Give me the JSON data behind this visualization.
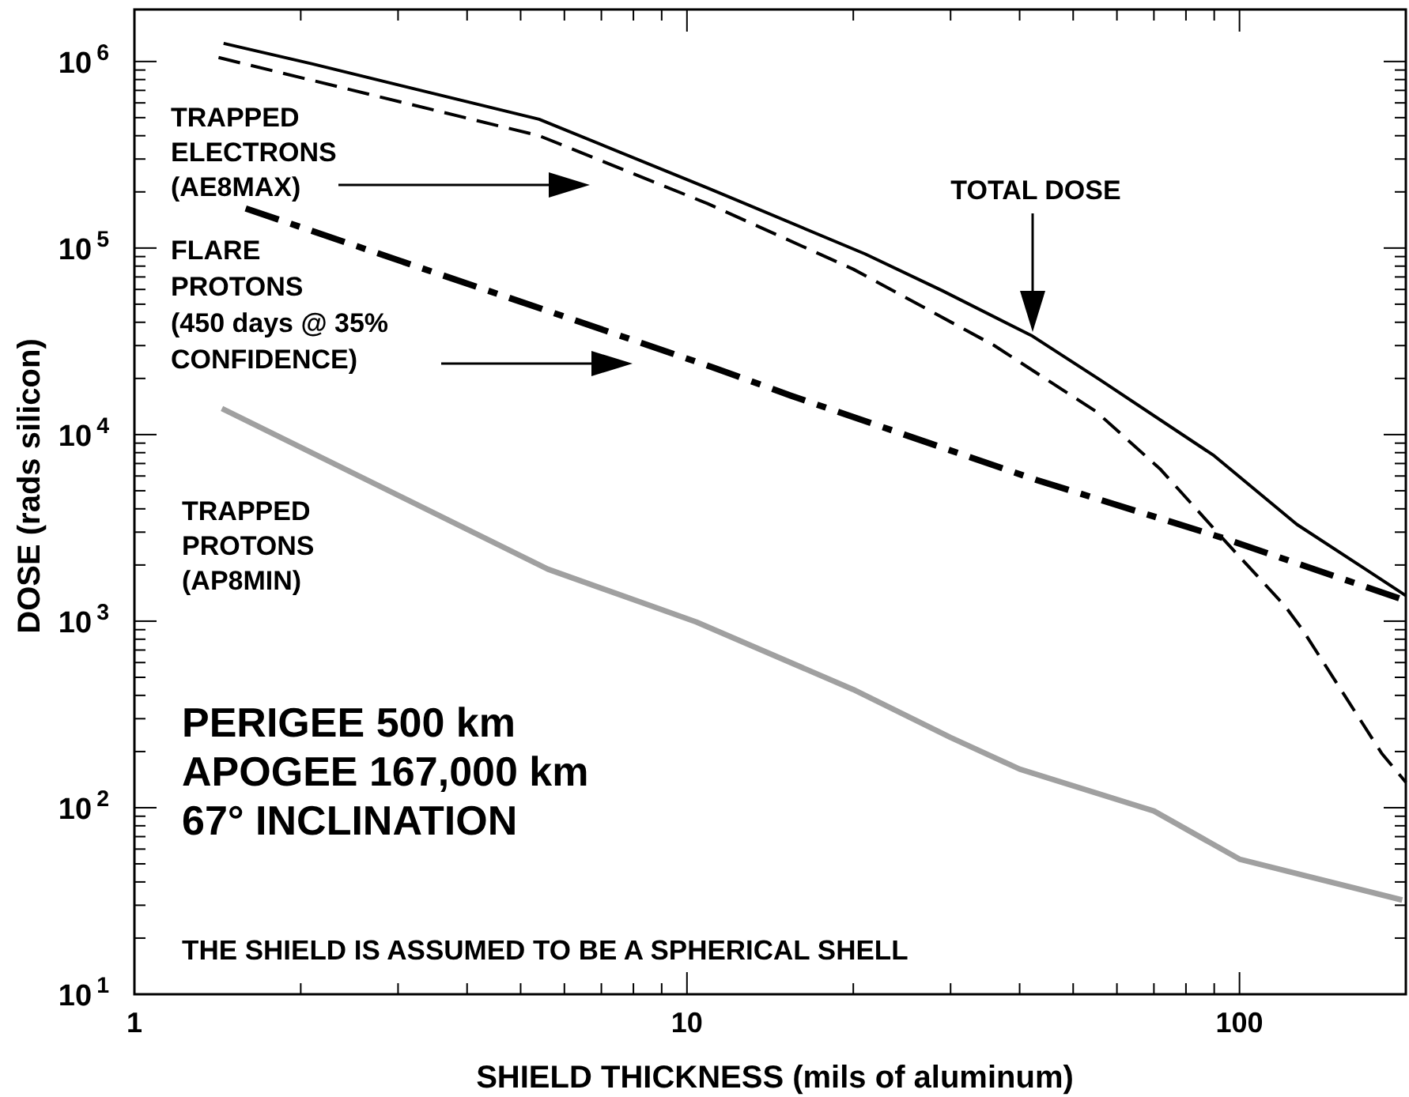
{
  "chart_data": {
    "type": "line",
    "xlabel": "SHIELD THICKNESS (mils of aluminum)",
    "ylabel": "DOSE (rads silicon)",
    "log": "xy",
    "xlim": [
      1,
      200
    ],
    "ylim": [
      10,
      1900000
    ],
    "xticks": [
      1,
      {
        "value": 2,
        "label": null
      },
      {
        "value": 3,
        "label": null
      },
      {
        "value": 4,
        "label": null
      },
      {
        "value": 5,
        "label": null
      },
      {
        "value": 6,
        "label": null
      },
      {
        "value": 7,
        "label": null
      },
      {
        "value": 8,
        "label": null
      },
      {
        "value": 9,
        "label": null
      },
      10,
      {
        "value": 20,
        "label": null
      },
      {
        "value": 30,
        "label": null
      },
      {
        "value": 40,
        "label": null
      },
      {
        "value": 50,
        "label": null
      },
      {
        "value": 60,
        "label": null
      },
      {
        "value": 70,
        "label": null
      },
      {
        "value": 80,
        "label": null
      },
      {
        "value": 90,
        "label": null
      },
      100
    ],
    "yticks": [
      {
        "value": 10,
        "label": "10$^{1}$"
      },
      {
        "value": 20,
        "label": null
      },
      {
        "value": 30,
        "label": null
      },
      {
        "value": 40,
        "label": null
      },
      {
        "value": 50,
        "label": null
      },
      {
        "value": 60,
        "label": null
      },
      {
        "value": 70,
        "label": null
      },
      {
        "value": 80,
        "label": null
      },
      {
        "value": 90,
        "label": null
      },
      {
        "value": 100,
        "label": "10$^{2}$"
      },
      {
        "value": 200,
        "label": null
      },
      {
        "value": 300,
        "label": null
      },
      {
        "value": 400,
        "label": null
      },
      {
        "value": 500,
        "label": null
      },
      {
        "value": 600,
        "label": null
      },
      {
        "value": 700,
        "label": null
      },
      {
        "value": 800,
        "label": null
      },
      {
        "value": 900,
        "label": null
      },
      {
        "value": 1000,
        "label": "10$^{3}$"
      },
      {
        "value": 2000,
        "label": null
      },
      {
        "value": 3000,
        "label": null
      },
      {
        "value": 4000,
        "label": null
      },
      {
        "value": 5000,
        "label": null
      },
      {
        "value": 6000,
        "label": null
      },
      {
        "value": 7000,
        "label": null
      },
      {
        "value": 8000,
        "label": null
      },
      {
        "value": 9000,
        "label": null
      },
      {
        "value": 10000,
        "label": "10$^{4}$"
      },
      {
        "value": 20000,
        "label": null
      },
      {
        "value": 30000,
        "label": null
      },
      {
        "value": 40000,
        "label": null
      },
      {
        "value": 50000,
        "label": null
      },
      {
        "value": 60000,
        "label": null
      },
      {
        "value": 70000,
        "label": null
      },
      {
        "value": 80000,
        "label": null
      },
      {
        "value": 90000,
        "label": null
      },
      {
        "value": 100000,
        "label": "10$^{5}$"
      },
      {
        "value": 200000,
        "label": null
      },
      {
        "value": 300000,
        "label": null
      },
      {
        "value": 400000,
        "label": null
      },
      {
        "value": 500000,
        "label": null
      },
      {
        "value": 600000,
        "label": null
      },
      {
        "value": 700000,
        "label": null
      },
      {
        "value": 800000,
        "label": null
      },
      {
        "value": 900000,
        "label": null
      },
      {
        "value": 1000000,
        "label": "10$^{6}$"
      }
    ],
    "grid": false,
    "series": [
      {
        "color": "#000000",
        "line_style": "solid",
        "x": [
          1.45,
          2.1,
          5.4,
          10.9,
          21,
          29,
          42,
          56,
          90,
          127,
          169,
          200
        ],
        "values": [
          1250000,
          970000,
          490000,
          210000,
          93000,
          59000,
          34000,
          19600,
          7700,
          3300,
          1900,
          1370
        ]
      },
      {
        "color": "#000000",
        "line_style": "dashed",
        "x": [
          1.42,
          5.4,
          10.9,
          20,
          36,
          55,
          72,
          93,
          121,
          130,
          181,
          200
        ],
        "values": [
          1050000,
          400000,
          173000,
          77000,
          30000,
          13300,
          6500,
          2800,
          1200,
          900,
          195,
          137
        ]
      },
      {
        "color": "#000000",
        "line_style": "dashdot",
        "x": [
          1.59,
          5.6,
          11.1,
          15.4,
          43,
          93,
          200
        ],
        "values": [
          163000,
          46000,
          23000,
          16200,
          5700,
          2800,
          1290
        ]
      },
      {
        "color": "#a0a0a0",
        "line_style": "solid",
        "x": [
          1.44,
          5.6,
          10.4,
          20,
          30,
          40,
          70,
          100,
          197
        ],
        "values": [
          13800,
          1900,
          990,
          430,
          238,
          161,
          96,
          53,
          32
        ]
      }
    ],
    "annotations": [
      "TRAPPED\nELECTRONS\n(AE8MAX)",
      "FLARE\nPROTONS\n(450 days @ 35%\nCONFIDENCE)",
      "TOTAL DOSE",
      "TRAPPED\nPROTONS\n(AP8MIN)",
      "PERIGEE 500 km\nAPOGEE 167,000 km\n67° INCLINATION",
      "THE SHIELD IS ASSUMED TO BE A SPHERICAL SHELL"
    ]
  }
}
